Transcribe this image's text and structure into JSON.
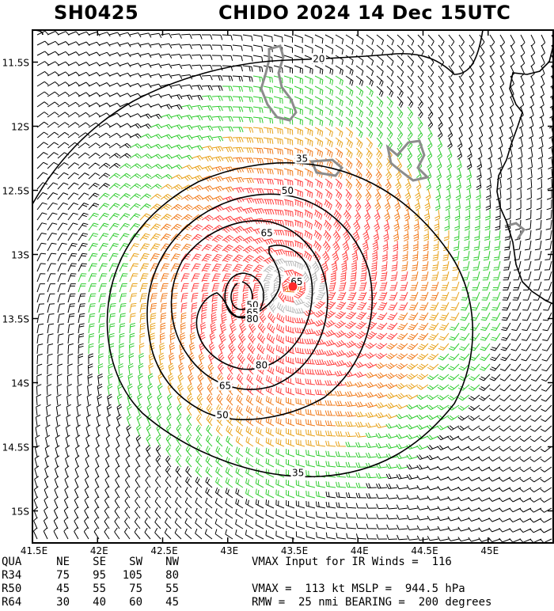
{
  "header": {
    "storm_id": "SH0425",
    "title": "CHIDO 2024 14 Dec 15UTC"
  },
  "map": {
    "lon_range": [
      41.5,
      45.5
    ],
    "lat_range": [
      -15.25,
      -11.25
    ],
    "lat_ticks": [
      {
        "value": -11.5,
        "label": "11.5S"
      },
      {
        "value": -12.0,
        "label": "12S"
      },
      {
        "value": -12.5,
        "label": "12.5S"
      },
      {
        "value": -13.0,
        "label": "13S"
      },
      {
        "value": -13.5,
        "label": "13.5S"
      },
      {
        "value": -14.0,
        "label": "14S"
      },
      {
        "value": -14.5,
        "label": "14.5S"
      },
      {
        "value": -15.0,
        "label": "15S"
      }
    ],
    "lon_ticks": [
      {
        "value": 41.5,
        "label": "41.5E"
      },
      {
        "value": 42.0,
        "label": "42E"
      },
      {
        "value": 42.5,
        "label": "42.5E"
      },
      {
        "value": 43.0,
        "label": "43E"
      },
      {
        "value": 43.5,
        "label": "43.5E"
      },
      {
        "value": 44.0,
        "label": "44E"
      },
      {
        "value": 44.5,
        "label": "44.5E"
      },
      {
        "value": 45.0,
        "label": "45E"
      }
    ],
    "storm_center": {
      "lon": 43.5,
      "lat": -13.25,
      "color": "#ff2a2a"
    },
    "contour_labels": [
      {
        "text": "20",
        "lon": 43.7,
        "lat": -11.48
      },
      {
        "text": "35",
        "lon": 43.57,
        "lat": -12.26
      },
      {
        "text": "50",
        "lon": 43.46,
        "lat": -12.51
      },
      {
        "text": "65",
        "lon": 43.3,
        "lat": -12.84
      },
      {
        "text": "65",
        "lon": 43.53,
        "lat": -13.22
      },
      {
        "text": "50",
        "lon": 43.19,
        "lat": -13.4
      },
      {
        "text": "65",
        "lon": 43.19,
        "lat": -13.46
      },
      {
        "text": "80",
        "lon": 43.19,
        "lat": -13.51
      },
      {
        "text": "80",
        "lon": 43.26,
        "lat": -13.87
      },
      {
        "text": "65",
        "lon": 42.98,
        "lat": -14.03
      },
      {
        "text": "50",
        "lon": 42.96,
        "lat": -14.26
      },
      {
        "text": "35",
        "lon": 43.54,
        "lat": -14.71
      }
    ],
    "colors": {
      "calm": "#000000",
      "ts34": "#2fcc2f",
      "ts50": "#e8a21a",
      "ts64": "#f07a1a",
      "hurricane": "#ff4040",
      "core": "#b8b8b8",
      "land": "#8c8c8c",
      "contour": "#000000"
    }
  },
  "footer": {
    "quadrant_header": [
      "QUA",
      "NE",
      "SE",
      "SW",
      "NW"
    ],
    "rows": [
      [
        "R34",
        "75",
        "95",
        "105",
        "80"
      ],
      [
        "R50",
        "45",
        "55",
        "75",
        "55"
      ],
      [
        "R64",
        "30",
        "40",
        "60",
        "45"
      ]
    ],
    "line1": "VMAX Input for IR Winds =  116",
    "line2": "",
    "line3": "VMAX =  113 kt MSLP =  944.5 hPa",
    "line4": "RMW =  25 nmi BEARING =  200 degrees"
  }
}
